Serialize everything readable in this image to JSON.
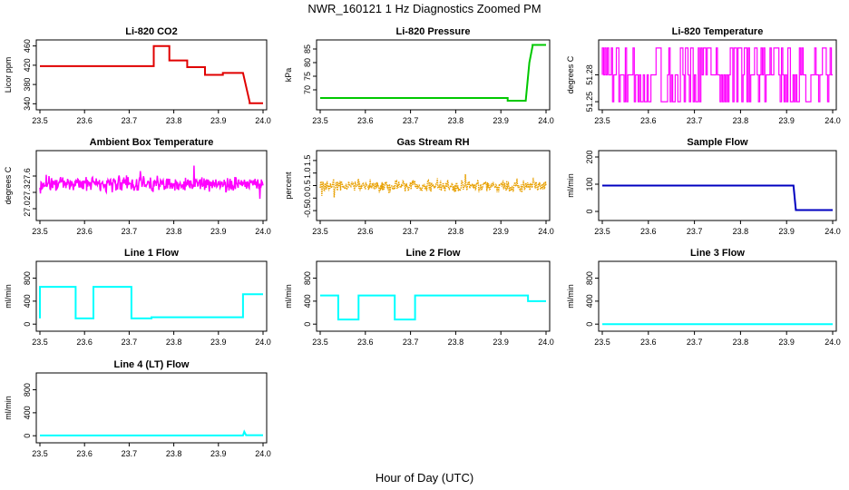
{
  "title": "NWR_160121  1 Hz Diagnostics Zoomed PM",
  "xlabel": "Hour of Day (UTC)",
  "colors": {
    "red": "#e00000",
    "green": "#00c800",
    "magenta": "#ff00ff",
    "orange": "#e8a000",
    "blue": "#0000c0",
    "cyan": "#00ffff"
  },
  "chart_data": [
    {
      "type": "line",
      "title": "Li-820 CO2",
      "ylabel": "Licor ppm",
      "xlim": [
        23.5,
        24.0
      ],
      "ylim": [
        335,
        465
      ],
      "xticks": [
        23.5,
        23.6,
        23.7,
        23.8,
        23.9,
        24.0
      ],
      "yticks": [
        340,
        380,
        420,
        460
      ],
      "color": "red",
      "series": [
        {
          "x": [
            23.5,
            23.755,
            23.755,
            23.79,
            23.79,
            23.83,
            23.83,
            23.87,
            23.87,
            23.91,
            23.91,
            23.955,
            23.97,
            23.97,
            24.0
          ],
          "y": [
            418,
            418,
            460,
            460,
            430,
            430,
            416,
            416,
            400,
            400,
            404,
            404,
            344,
            341,
            341
          ]
        }
      ]
    },
    {
      "type": "line",
      "title": "Li-820 Pressure",
      "ylabel": "kPa",
      "xlim": [
        23.5,
        24.0
      ],
      "ylim": [
        64,
        87
      ],
      "xticks": [
        23.5,
        23.6,
        23.7,
        23.8,
        23.9,
        24.0
      ],
      "yticks": [
        70,
        75,
        80,
        85
      ],
      "color": "green",
      "series": [
        {
          "x": [
            23.5,
            23.915,
            23.915,
            23.955,
            23.963,
            23.97,
            23.97,
            24.0
          ],
          "y": [
            67.0,
            67.0,
            66.0,
            66.0,
            80.0,
            86.0,
            86.5,
            86.5
          ]
        }
      ]
    },
    {
      "type": "line",
      "title": "Li-820 Temperature",
      "ylabel": "degrees C",
      "xlim": [
        23.5,
        24.0
      ],
      "ylim": [
        51.245,
        51.315
      ],
      "xticks": [
        23.5,
        23.6,
        23.7,
        23.8,
        23.9,
        24.0
      ],
      "yticks": [
        51.25,
        51.28
      ],
      "color": "magenta",
      "noise": "toggle",
      "levels": [
        51.25,
        51.28,
        51.31
      ]
    },
    {
      "type": "line",
      "title": "Ambient Box Temperature",
      "ylabel": "degrees C",
      "xlim": [
        23.5,
        24.0
      ],
      "ylim": [
        26.85,
        28.0
      ],
      "xticks": [
        23.5,
        23.6,
        23.7,
        23.8,
        23.9,
        24.0
      ],
      "yticks": [
        27.0,
        27.3,
        27.6
      ],
      "color": "magenta",
      "noise": "band",
      "center": 27.45,
      "spread": 0.2
    },
    {
      "type": "scatter",
      "title": "Gas Stream RH",
      "ylabel": "percent",
      "xlim": [
        23.5,
        24.0
      ],
      "ylim": [
        -0.75,
        1.75
      ],
      "xticks": [
        23.5,
        23.6,
        23.7,
        23.8,
        23.9,
        24.0
      ],
      "yticks": [
        -0.5,
        0.0,
        0.5,
        1.0,
        1.5
      ],
      "color": "orange",
      "noise": "band",
      "center": 0.5,
      "spread": 0.35
    },
    {
      "type": "line",
      "title": "Sample Flow",
      "ylabel": "ml/min",
      "xlim": [
        23.5,
        24.0
      ],
      "ylim": [
        -20,
        210
      ],
      "xticks": [
        23.5,
        23.6,
        23.7,
        23.8,
        23.9,
        24.0
      ],
      "yticks": [
        0,
        100,
        200
      ],
      "color": "blue",
      "series": [
        {
          "x": [
            23.5,
            23.915,
            23.92,
            24.0
          ],
          "y": [
            95,
            95,
            5,
            5
          ]
        }
      ]
    },
    {
      "type": "line",
      "title": "Line 1 Flow",
      "ylabel": "ml/min",
      "xlim": [
        23.5,
        24.0
      ],
      "ylim": [
        -60,
        1030
      ],
      "xticks": [
        23.5,
        23.6,
        23.7,
        23.8,
        23.9,
        24.0
      ],
      "yticks": [
        0,
        400,
        800
      ],
      "color": "cyan",
      "series": [
        {
          "x": [
            23.5,
            23.5,
            23.58,
            23.58,
            23.62,
            23.62,
            23.705,
            23.705,
            23.75,
            23.75,
            23.955,
            23.955,
            24.0
          ],
          "y": [
            100,
            650,
            650,
            100,
            100,
            650,
            650,
            100,
            100,
            120,
            120,
            520,
            520
          ]
        }
      ]
    },
    {
      "type": "line",
      "title": "Line 2 Flow",
      "ylabel": "ml/min",
      "xlim": [
        23.5,
        24.0
      ],
      "ylim": [
        -60,
        1030
      ],
      "xticks": [
        23.5,
        23.6,
        23.7,
        23.8,
        23.9,
        24.0
      ],
      "yticks": [
        0,
        400,
        800
      ],
      "color": "cyan",
      "series": [
        {
          "x": [
            23.5,
            23.54,
            23.54,
            23.585,
            23.585,
            23.665,
            23.665,
            23.71,
            23.71,
            23.96,
            23.96,
            24.0
          ],
          "y": [
            500,
            500,
            80,
            80,
            500,
            500,
            80,
            80,
            500,
            500,
            400,
            400
          ]
        }
      ]
    },
    {
      "type": "line",
      "title": "Line 3 Flow",
      "ylabel": "ml/min",
      "xlim": [
        23.5,
        24.0
      ],
      "ylim": [
        -60,
        1030
      ],
      "xticks": [
        23.5,
        23.6,
        23.7,
        23.8,
        23.9,
        24.0
      ],
      "yticks": [
        0,
        400,
        800
      ],
      "color": "cyan",
      "series": [
        {
          "x": [
            23.5,
            24.0
          ],
          "y": [
            0,
            0
          ]
        }
      ]
    },
    {
      "type": "line",
      "title": "Line 4 (LT) Flow",
      "ylabel": "ml/min",
      "xlim": [
        23.5,
        24.0
      ],
      "ylim": [
        -60,
        1030
      ],
      "xticks": [
        23.5,
        23.6,
        23.7,
        23.8,
        23.9,
        24.0
      ],
      "yticks": [
        0,
        400,
        800
      ],
      "color": "cyan",
      "series": [
        {
          "x": [
            23.5,
            23.955,
            23.958,
            23.962,
            24.0
          ],
          "y": [
            5,
            5,
            70,
            10,
            10
          ]
        }
      ]
    }
  ]
}
